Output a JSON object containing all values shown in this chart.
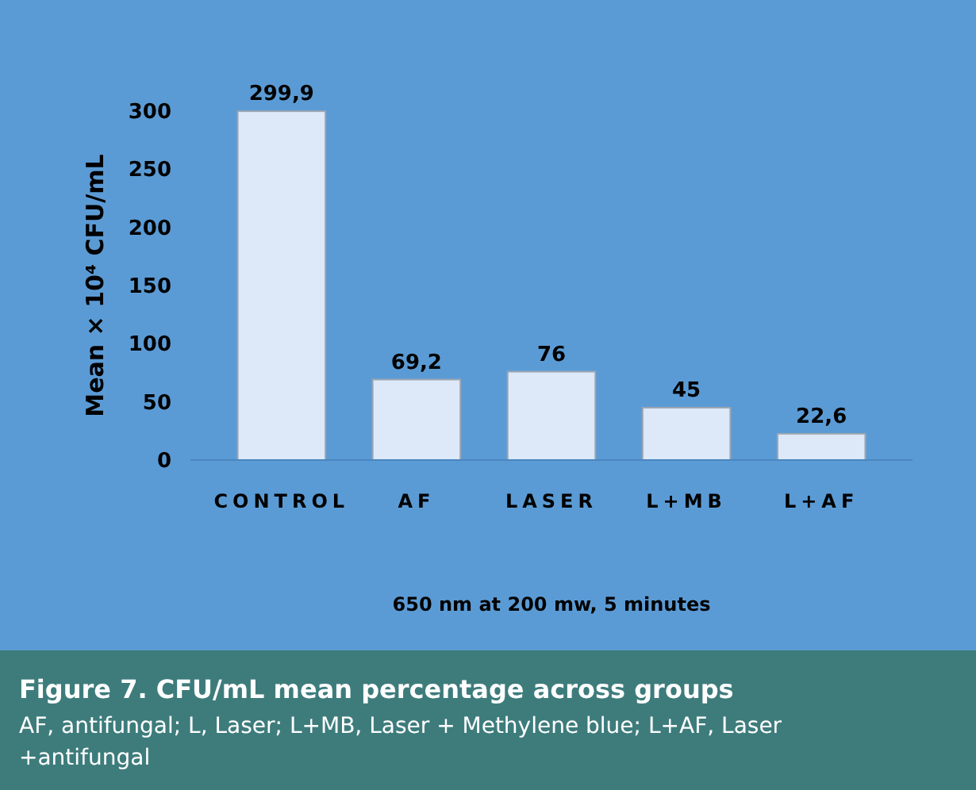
{
  "chart_data": {
    "type": "bar",
    "title": "Figure 7. CFU/mL mean percentage across groups",
    "annotations": [
      "AF, antifungal; L, Laser; L+MB, Laser + Methylene blue; L+AF, Laser +antifungal"
    ],
    "xlabel": "650 nm at 200 mw, 5 minutes",
    "ylabel": "Mean × 10⁴  CFU/mL",
    "categories": [
      "CONTROL",
      "AF",
      "LASER",
      "L+MB",
      "L+AF"
    ],
    "values": [
      299.9,
      69.2,
      76,
      45,
      22.6
    ],
    "value_labels": [
      "299,9",
      "69,2",
      "76",
      "45",
      "22,6"
    ],
    "color": "#dde9f8",
    "ylim": [
      0,
      300
    ],
    "yticks": [
      0,
      50,
      100,
      150,
      200,
      250,
      300
    ],
    "grid": false
  }
}
